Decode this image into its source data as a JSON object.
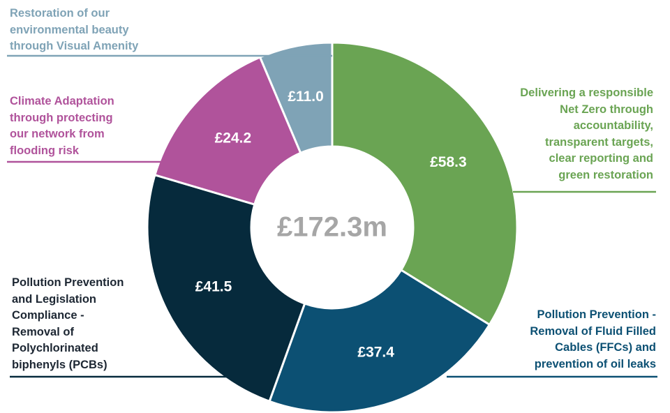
{
  "chart_data": {
    "type": "donut",
    "center_label": "£172.3m",
    "categories": [
      "Delivering a responsible\nNet Zero through\naccountability,\ntransparent targets,\nclear reporting and\ngreen restoration",
      "Pollution Prevention -\nRemoval of Fluid Filled\nCables (FFCs) and\nprevention of oil leaks",
      "Pollution Prevention\nand Legislation\nCompliance  -\nRemoval of\nPolychlorinated\nbiphenyls (PCBs)",
      "Climate Adaptation\nthrough protecting\nour network from\nflooding risk",
      "Restoration of our\nenvironmental beauty\nthrough Visual Amenity"
    ],
    "values": [
      58.3,
      37.4,
      41.5,
      24.2,
      11.0
    ],
    "value_labels": [
      "£58.3",
      "£37.4",
      "£41.5",
      "£24.2",
      "£11.0"
    ],
    "colors": [
      "#6aa453",
      "#0c5073",
      "#062a3c",
      "#b0539b",
      "#7fa3b6"
    ]
  }
}
